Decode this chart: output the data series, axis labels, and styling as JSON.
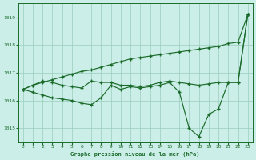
{
  "title": "Graphe pression niveau de la mer (hPa)",
  "bg_color": "#cceee8",
  "grid_color": "#99ccbb",
  "line_color": "#1a6b2a",
  "x_ticks": [
    0,
    1,
    2,
    3,
    4,
    5,
    6,
    7,
    8,
    9,
    10,
    11,
    12,
    13,
    14,
    15,
    16,
    17,
    18,
    19,
    20,
    21,
    22,
    23
  ],
  "ylim": [
    1014.5,
    1019.5
  ],
  "yticks": [
    1015,
    1016,
    1017,
    1018,
    1019
  ],
  "series1": [
    1016.4,
    1016.55,
    1016.65,
    1016.75,
    1016.85,
    1016.95,
    1017.05,
    1017.1,
    1017.2,
    1017.3,
    1017.4,
    1017.5,
    1017.55,
    1017.6,
    1017.65,
    1017.7,
    1017.75,
    1017.8,
    1017.85,
    1017.9,
    1017.95,
    1018.05,
    1018.1,
    1019.1
  ],
  "series2": [
    1016.4,
    1016.55,
    1016.7,
    1016.65,
    1016.55,
    1016.5,
    1016.45,
    1016.7,
    1016.65,
    1016.65,
    1016.55,
    1016.55,
    1016.5,
    1016.55,
    1016.65,
    1016.7,
    1016.65,
    1016.6,
    1016.55,
    1016.6,
    1016.65,
    1016.65,
    1016.65,
    1019.1
  ],
  "series3": [
    1016.4,
    1016.3,
    1016.2,
    1016.1,
    1016.05,
    1016.0,
    1015.9,
    1015.85,
    1016.1,
    1016.55,
    1016.4,
    1016.5,
    1016.45,
    1016.5,
    1016.55,
    1016.65,
    1016.3,
    1015.0,
    1014.7,
    1015.5,
    1015.7,
    1016.65,
    1016.65,
    1019.1
  ]
}
